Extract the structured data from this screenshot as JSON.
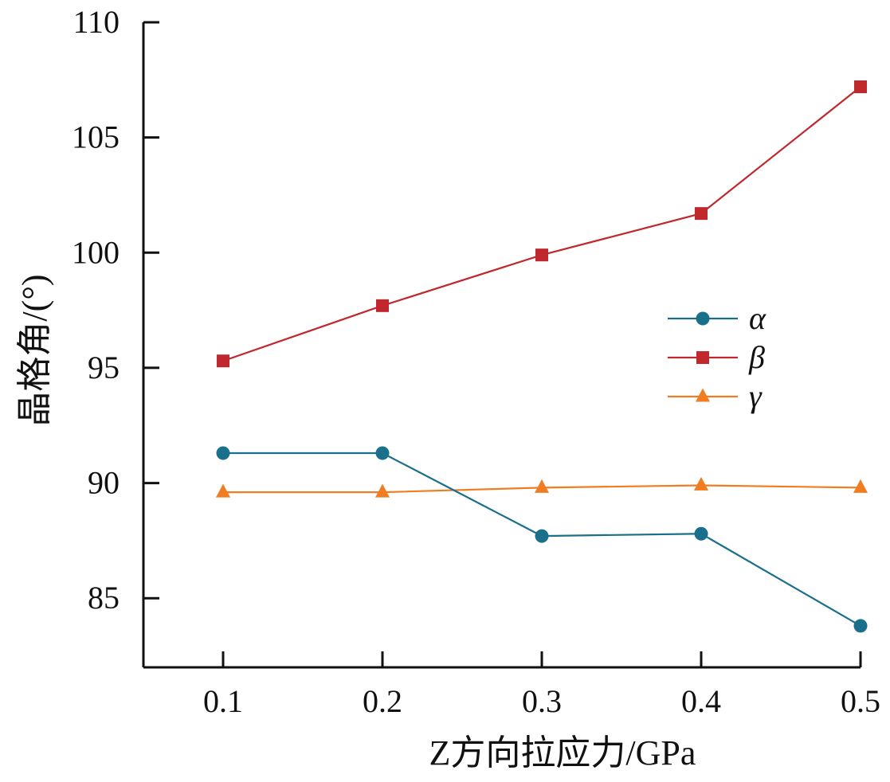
{
  "chart_data": {
    "type": "line",
    "title": "",
    "xlabel": "Z方向拉应力/GPa",
    "ylabel": "晶格角/(°)",
    "x": [
      0.1,
      0.2,
      0.3,
      0.4,
      0.5
    ],
    "x_tick_labels": [
      "0.1",
      "0.2",
      "0.3",
      "0.4",
      "0.5"
    ],
    "xlim": [
      0.05,
      0.5
    ],
    "ylim": [
      82,
      110
    ],
    "y_ticks": [
      85,
      90,
      95,
      100,
      105,
      110
    ],
    "y_tick_labels": [
      "85",
      "90",
      "95",
      "100",
      "105",
      "110"
    ],
    "grid": false,
    "legend_position": "right-middle",
    "series": [
      {
        "name": "α",
        "values": [
          91.3,
          91.3,
          87.7,
          87.8,
          83.8
        ],
        "color": "#1a6f8a",
        "marker": "circle"
      },
      {
        "name": "β",
        "values": [
          95.3,
          97.7,
          99.9,
          101.7,
          107.2
        ],
        "color": "#c0282d",
        "marker": "square"
      },
      {
        "name": "γ",
        "values": [
          89.6,
          89.6,
          89.8,
          89.9,
          89.8
        ],
        "color": "#f07d22",
        "marker": "triangle"
      }
    ]
  }
}
